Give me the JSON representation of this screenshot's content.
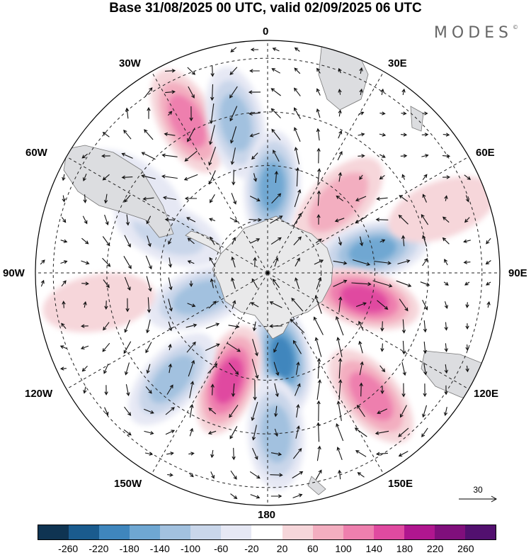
{
  "title": "Base 31/08/2025 00 UTC, valid 02/09/2025 06 UTC",
  "brand": "MODES",
  "brand_mark": "©",
  "longitude_labels": {
    "n": "0",
    "ne": "30E",
    "e1": "60E",
    "e": "90E",
    "e2": "120E",
    "se": "150E",
    "s": "180",
    "sw": "150W",
    "w2": "120W",
    "w": "90W",
    "w1": "60W",
    "nw": "30W"
  },
  "reference_vector": {
    "label": "30"
  },
  "colorbar": {
    "ticks": [
      "-260",
      "-220",
      "-180",
      "-140",
      "-100",
      "-60",
      "-20",
      "20",
      "60",
      "100",
      "140",
      "180",
      "220",
      "260"
    ],
    "colors": [
      "#0f3452",
      "#1a5b8e",
      "#3f86bd",
      "#6fa7d2",
      "#a2c1df",
      "#c9d6ea",
      "#e6e8f4",
      "#ffffff",
      "#f6d6da",
      "#f3aec0",
      "#ee7fae",
      "#e04aa0",
      "#b0168f",
      "#800f7c",
      "#52106f"
    ]
  },
  "map": {
    "projection": "south-polar-stereographic",
    "anomalies": [
      {
        "name": "anomaly-positive-30w",
        "lon": -28,
        "colat": 48,
        "value": 130
      },
      {
        "name": "anomaly-negative-15w",
        "lon": -12,
        "colat": 43,
        "value": -120
      },
      {
        "name": "anomaly-negative-5e",
        "lon": 3,
        "colat": 24,
        "value": -140
      },
      {
        "name": "anomaly-positive-45e",
        "lon": 45,
        "colat": 28,
        "value": 80
      },
      {
        "name": "anomaly-negative-80e",
        "lon": 78,
        "colat": 30,
        "value": -150
      },
      {
        "name": "anomaly-positive-105e",
        "lon": 105,
        "colat": 28,
        "value": 170
      },
      {
        "name": "anomaly-positive-135e",
        "lon": 140,
        "colat": 45,
        "value": 130
      },
      {
        "name": "anomaly-negative-165e",
        "lon": 170,
        "colat": 24,
        "value": -180
      },
      {
        "name": "anomaly-negative-175w",
        "lon": 177,
        "colat": 45,
        "value": -120
      },
      {
        "name": "anomaly-positive-155w",
        "lon": -160,
        "colat": 32,
        "value": 150
      },
      {
        "name": "anomaly-negative-135w",
        "lon": -138,
        "colat": 40,
        "value": -120
      },
      {
        "name": "anomaly-negative-110w",
        "lon": -110,
        "colat": 20,
        "value": -110
      },
      {
        "name": "anomaly-positive-100w",
        "lon": -100,
        "colat": 48,
        "value": 40
      },
      {
        "name": "anomaly-negative-70w",
        "lon": -68,
        "colat": 30,
        "value": -80
      },
      {
        "name": "anomaly-negative-60w",
        "lon": -58,
        "colat": 45,
        "value": -40
      },
      {
        "name": "anomaly-positive-70e",
        "lon": 70,
        "colat": 52,
        "value": 50
      }
    ]
  }
}
